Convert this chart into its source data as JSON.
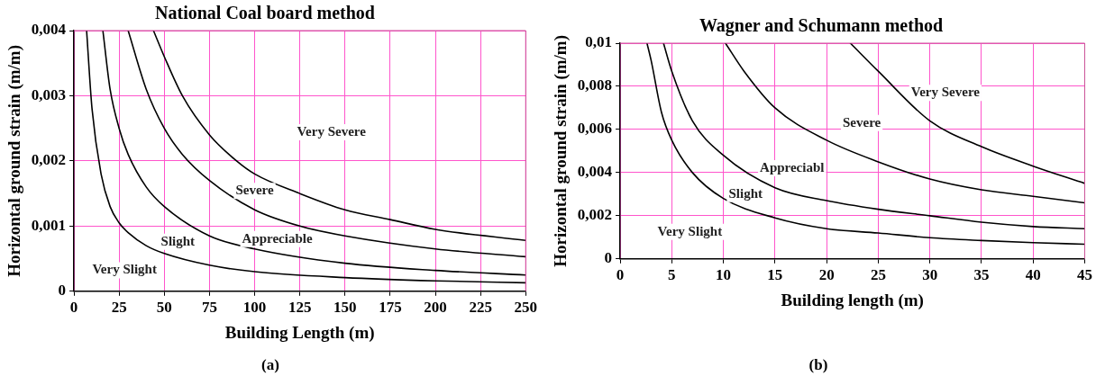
{
  "chart_data": [
    {
      "type": "line",
      "title": "National Coal board method",
      "xlabel": "Building Length (m)",
      "ylabel": "Horizontal ground strain (m/m)",
      "xlim": [
        0,
        250
      ],
      "xticks": [
        0,
        25,
        50,
        75,
        100,
        125,
        150,
        175,
        200,
        225,
        250
      ],
      "ylim": [
        0,
        0.004
      ],
      "yticks": [
        0,
        {
          "value": 0.001,
          "label": "0,001"
        },
        {
          "value": 0.002,
          "label": "0,002"
        },
        {
          "value": 0.003,
          "label": "0,003"
        },
        {
          "value": 0.004,
          "label": "0,004"
        }
      ],
      "grid": true,
      "legend": false,
      "marker": "none",
      "line_style": "solid",
      "series": [
        {
          "color": "#000000",
          "x": [
            7,
            10,
            15,
            20,
            25,
            30,
            40,
            50,
            75,
            100,
            150,
            200,
            250
          ],
          "values": [
            0.004,
            0.0028,
            0.0018,
            0.0013,
            0.00105,
            0.0009,
            0.0007,
            0.00058,
            0.0004,
            0.0003,
            0.00021,
            0.00016,
            0.00013
          ]
        },
        {
          "color": "#000000",
          "x": [
            16,
            20,
            25,
            30,
            40,
            50,
            75,
            100,
            150,
            200,
            250
          ],
          "values": [
            0.004,
            0.0031,
            0.0025,
            0.0021,
            0.0016,
            0.0013,
            0.00085,
            0.00065,
            0.00043,
            0.00032,
            0.00025
          ]
        },
        {
          "color": "#000000",
          "x": [
            30,
            40,
            50,
            60,
            75,
            100,
            125,
            150,
            200,
            250
          ],
          "values": [
            0.004,
            0.0031,
            0.0025,
            0.0021,
            0.0017,
            0.00125,
            0.001,
            0.00085,
            0.00065,
            0.00053
          ]
        },
        {
          "color": "#000000",
          "x": [
            44,
            50,
            60,
            75,
            90,
            100,
            125,
            150,
            175,
            200,
            250
          ],
          "values": [
            0.004,
            0.0036,
            0.003,
            0.0024,
            0.002,
            0.0018,
            0.0015,
            0.00125,
            0.0011,
            0.00095,
            0.00078
          ]
        }
      ],
      "annotations": [
        "Very Slight",
        "Slight",
        "Appreciable",
        "Severe",
        "Very Severe",
        "(a)"
      ]
    },
    {
      "type": "line",
      "title": "Wagner and Schumann method",
      "xlabel": "Building length (m)",
      "ylabel": "Horizontal ground strain (m/m)",
      "xlim": [
        0,
        45
      ],
      "xticks": [
        0,
        5,
        10,
        15,
        20,
        25,
        30,
        35,
        40,
        45
      ],
      "ylim": [
        0,
        0.01
      ],
      "yticks": [
        0,
        {
          "value": 0.002,
          "label": "0,002"
        },
        {
          "value": 0.004,
          "label": "0,004"
        },
        {
          "value": 0.006,
          "label": "0,006"
        },
        {
          "value": 0.008,
          "label": "0,008"
        },
        {
          "value": 0.01,
          "label": "0,01"
        }
      ],
      "grid": true,
      "legend": false,
      "marker": "none",
      "line_style": "solid",
      "series": [
        {
          "color": "#000000",
          "x": [
            2.6,
            3,
            4,
            5,
            7,
            10,
            15,
            20,
            25,
            30,
            35,
            40,
            45
          ],
          "values": [
            0.01,
            0.0092,
            0.0068,
            0.0055,
            0.004,
            0.0028,
            0.0019,
            0.0014,
            0.0012,
            0.00098,
            0.00085,
            0.00075,
            0.00068
          ]
        },
        {
          "color": "#000000",
          "x": [
            4.2,
            5,
            7,
            10,
            15,
            20,
            25,
            30,
            35,
            40,
            45
          ],
          "values": [
            0.01,
            0.0087,
            0.0064,
            0.0048,
            0.0033,
            0.0027,
            0.0023,
            0.002,
            0.0017,
            0.0015,
            0.0014
          ]
        },
        {
          "color": "#000000",
          "x": [
            10.2,
            12,
            15,
            20,
            25,
            30,
            35,
            40,
            45
          ],
          "values": [
            0.01,
            0.0087,
            0.007,
            0.0055,
            0.0045,
            0.0037,
            0.0032,
            0.0029,
            0.0026
          ]
        },
        {
          "color": "#000000",
          "x": [
            22.3,
            25,
            30,
            35,
            40,
            45
          ],
          "values": [
            0.01,
            0.0087,
            0.0064,
            0.0052,
            0.0043,
            0.0035
          ]
        }
      ],
      "annotations": [
        "Very Slight",
        "Slight",
        "Appreciabl",
        "Severe",
        "Very Severe",
        "(b)"
      ]
    }
  ]
}
